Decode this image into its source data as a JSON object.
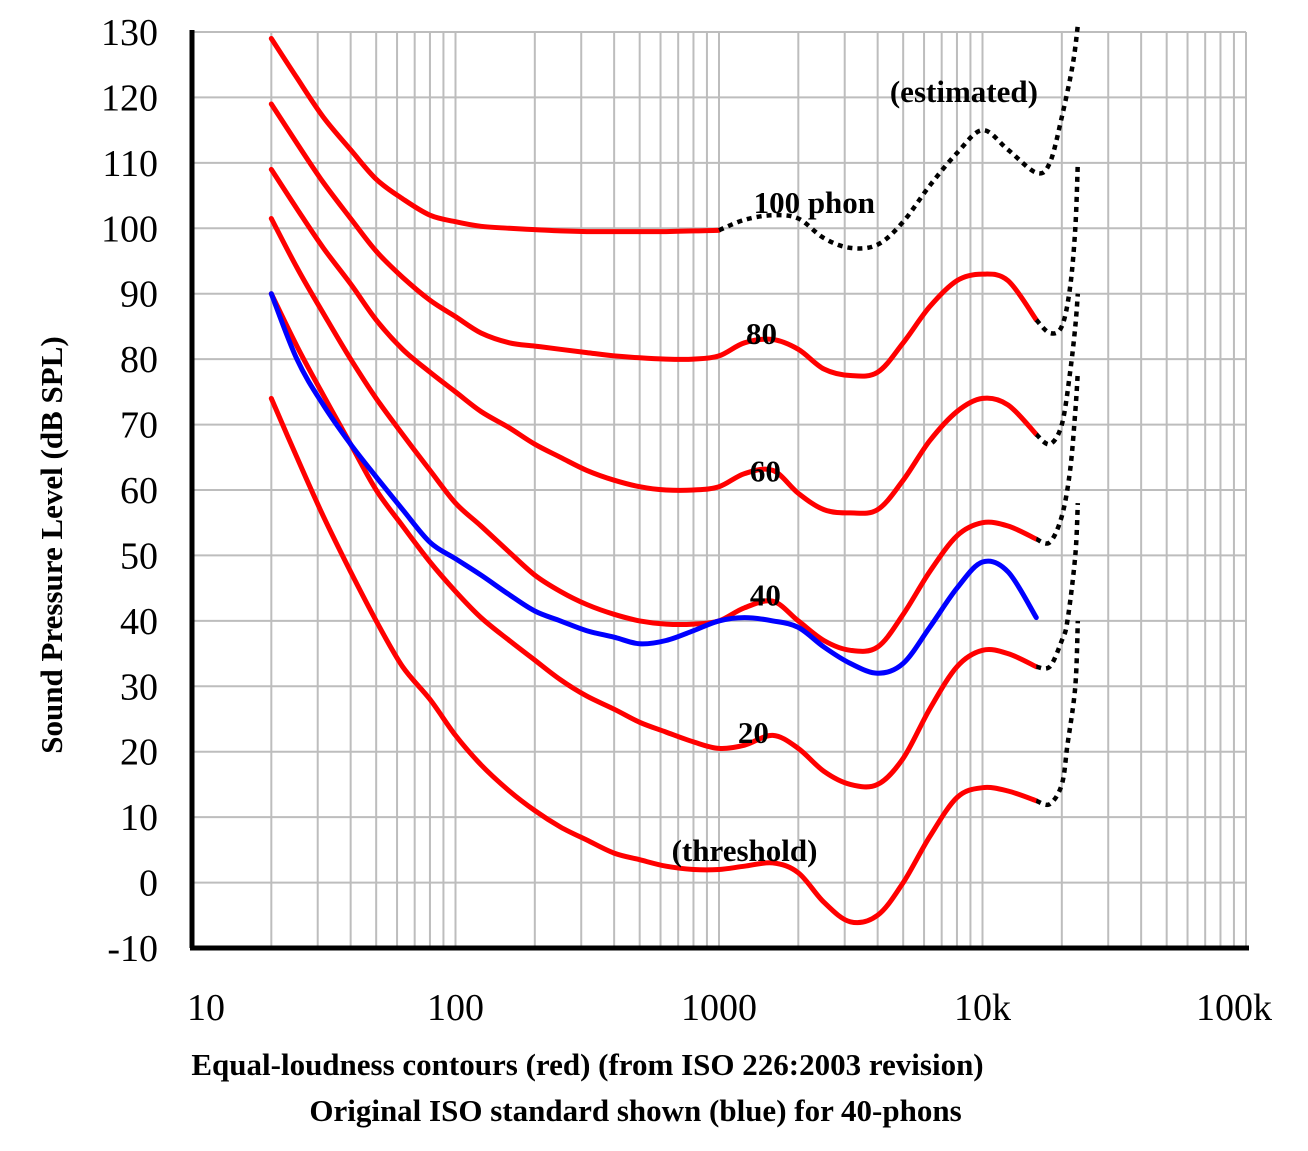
{
  "chart_data": {
    "type": "line",
    "xscale": "log",
    "xlim": [
      10,
      100000
    ],
    "ylim": [
      -10,
      130
    ],
    "grid": true,
    "ylabel": "Sound Pressure Level (dB SPL)",
    "xlabel_lines": [
      "Equal-loudness contours (red) (from ISO 226:2003 revision)",
      "Original ISO standard shown (blue) for 40-phons"
    ],
    "y_ticks": [
      {
        "value": 130,
        "label": "130"
      },
      {
        "value": 120,
        "label": "120"
      },
      {
        "value": 110,
        "label": "110"
      },
      {
        "value": 100,
        "label": "100"
      },
      {
        "value": 90,
        "label": "90"
      },
      {
        "value": 80,
        "label": "80"
      },
      {
        "value": 70,
        "label": "70"
      },
      {
        "value": 60,
        "label": "60"
      },
      {
        "value": 50,
        "label": "50"
      },
      {
        "value": 40,
        "label": "40"
      },
      {
        "value": 30,
        "label": "30"
      },
      {
        "value": 20,
        "label": "20"
      },
      {
        "value": 10,
        "label": "10"
      },
      {
        "value": 0,
        "label": "0"
      },
      {
        "value": -10,
        "label": "-10"
      }
    ],
    "x_ticks": [
      {
        "value": 10,
        "label": "10"
      },
      {
        "value": 100,
        "label": "100"
      },
      {
        "value": 1000,
        "label": "1000"
      },
      {
        "value": 10000,
        "label": "10k"
      },
      {
        "value": 100000,
        "label": "100k"
      }
    ],
    "annotations": [
      {
        "text": "(estimated)",
        "x": 8500,
        "y": 121
      },
      {
        "text": "100 phon",
        "x": 2300,
        "y": 104
      },
      {
        "text": "80",
        "x": 1450,
        "y": 84
      },
      {
        "text": "60",
        "x": 1500,
        "y": 63
      },
      {
        "text": "40",
        "x": 1500,
        "y": 44
      },
      {
        "text": "20",
        "x": 1350,
        "y": 23
      },
      {
        "text": "(threshold)",
        "x": 1250,
        "y": 5
      }
    ],
    "series": [
      {
        "color": "#ff0000",
        "style": "solid",
        "points": [
          [
            20,
            129
          ],
          [
            25,
            123
          ],
          [
            31.5,
            117
          ],
          [
            40,
            112
          ],
          [
            50,
            107.5
          ],
          [
            63,
            104.5
          ],
          [
            80,
            102
          ],
          [
            100,
            101
          ],
          [
            125,
            100.3
          ],
          [
            160,
            100
          ],
          [
            200,
            99.8
          ],
          [
            250,
            99.6
          ],
          [
            315,
            99.5
          ],
          [
            400,
            99.5
          ],
          [
            500,
            99.5
          ],
          [
            630,
            99.5
          ],
          [
            800,
            99.6
          ],
          [
            1000,
            99.7
          ]
        ]
      },
      {
        "color": "#000000",
        "style": "dotted",
        "points": [
          [
            1000,
            99.7
          ],
          [
            1250,
            101.3
          ],
          [
            1600,
            102
          ],
          [
            2000,
            101.5
          ],
          [
            2500,
            98.5
          ],
          [
            3150,
            97
          ],
          [
            4000,
            97.5
          ],
          [
            5000,
            101
          ],
          [
            6300,
            106.5
          ],
          [
            8000,
            111.5
          ],
          [
            10000,
            115
          ],
          [
            12500,
            112
          ],
          [
            16000,
            108.5
          ],
          [
            18000,
            110
          ],
          [
            20000,
            117
          ],
          [
            22000,
            125
          ],
          [
            23000,
            131
          ]
        ]
      },
      {
        "color": "#ff0000",
        "style": "solid",
        "points": [
          [
            20,
            119
          ],
          [
            25,
            113
          ],
          [
            31.5,
            107
          ],
          [
            40,
            101.5
          ],
          [
            50,
            96.5
          ],
          [
            63,
            92.5
          ],
          [
            80,
            89
          ],
          [
            100,
            86.5
          ],
          [
            125,
            84
          ],
          [
            160,
            82.5
          ],
          [
            200,
            82
          ],
          [
            250,
            81.5
          ],
          [
            315,
            81
          ],
          [
            400,
            80.5
          ],
          [
            500,
            80.2
          ],
          [
            630,
            80
          ],
          [
            800,
            80
          ],
          [
            1000,
            80.5
          ],
          [
            1250,
            82.5
          ],
          [
            1600,
            83
          ],
          [
            2000,
            81.5
          ],
          [
            2500,
            78.5
          ],
          [
            3150,
            77.5
          ],
          [
            4000,
            78
          ],
          [
            5000,
            82.5
          ],
          [
            6300,
            88
          ],
          [
            8000,
            92
          ],
          [
            10000,
            93
          ],
          [
            12500,
            92
          ],
          [
            16000,
            86
          ]
        ]
      },
      {
        "color": "#000000",
        "style": "dotted",
        "points": [
          [
            16000,
            86
          ],
          [
            18000,
            84
          ],
          [
            20000,
            85
          ],
          [
            21500,
            91
          ],
          [
            22500,
            100
          ],
          [
            23000,
            110
          ]
        ]
      },
      {
        "color": "#ff0000",
        "style": "solid",
        "points": [
          [
            20,
            109
          ],
          [
            25,
            103
          ],
          [
            31.5,
            97
          ],
          [
            40,
            91.5
          ],
          [
            50,
            86
          ],
          [
            63,
            81.5
          ],
          [
            80,
            78
          ],
          [
            100,
            75
          ],
          [
            125,
            72
          ],
          [
            160,
            69.5
          ],
          [
            200,
            67
          ],
          [
            250,
            65
          ],
          [
            315,
            63
          ],
          [
            400,
            61.5
          ],
          [
            500,
            60.5
          ],
          [
            630,
            60
          ],
          [
            800,
            60
          ],
          [
            1000,
            60.5
          ],
          [
            1250,
            62.5
          ],
          [
            1600,
            63
          ],
          [
            2000,
            59.5
          ],
          [
            2500,
            57
          ],
          [
            3150,
            56.5
          ],
          [
            4000,
            57
          ],
          [
            5000,
            61.5
          ],
          [
            6300,
            67.5
          ],
          [
            8000,
            72
          ],
          [
            10000,
            74
          ],
          [
            12500,
            73
          ],
          [
            16000,
            68.5
          ]
        ]
      },
      {
        "color": "#000000",
        "style": "dotted",
        "points": [
          [
            16000,
            68.5
          ],
          [
            18000,
            67
          ],
          [
            20000,
            70
          ],
          [
            21500,
            78
          ],
          [
            22500,
            85
          ],
          [
            23000,
            90
          ]
        ]
      },
      {
        "color": "#ff0000",
        "style": "solid",
        "points": [
          [
            20,
            101.5
          ],
          [
            25,
            94
          ],
          [
            31.5,
            87
          ],
          [
            40,
            80
          ],
          [
            50,
            74
          ],
          [
            63,
            68.5
          ],
          [
            80,
            63
          ],
          [
            100,
            58
          ],
          [
            125,
            54.5
          ],
          [
            160,
            50.5
          ],
          [
            200,
            47
          ],
          [
            250,
            44.5
          ],
          [
            315,
            42.5
          ],
          [
            400,
            41
          ],
          [
            500,
            40
          ],
          [
            630,
            39.5
          ],
          [
            800,
            39.5
          ],
          [
            1000,
            40
          ],
          [
            1250,
            42
          ],
          [
            1600,
            43
          ],
          [
            2000,
            40
          ],
          [
            2500,
            37
          ],
          [
            3150,
            35.5
          ],
          [
            4000,
            36
          ],
          [
            5000,
            41
          ],
          [
            6300,
            47.5
          ],
          [
            8000,
            53
          ],
          [
            10000,
            55
          ],
          [
            12500,
            54.5
          ],
          [
            16000,
            52.5
          ]
        ]
      },
      {
        "color": "#000000",
        "style": "dotted",
        "points": [
          [
            16000,
            52.5
          ],
          [
            18000,
            52
          ],
          [
            20000,
            56
          ],
          [
            21500,
            63
          ],
          [
            22500,
            72
          ],
          [
            23000,
            78
          ]
        ]
      },
      {
        "color": "#ff0000",
        "style": "solid",
        "points": [
          [
            20,
            90
          ],
          [
            25,
            82
          ],
          [
            31.5,
            74.5
          ],
          [
            40,
            67
          ],
          [
            50,
            60
          ],
          [
            63,
            54.5
          ],
          [
            80,
            49
          ],
          [
            100,
            44.5
          ],
          [
            125,
            40.5
          ],
          [
            160,
            37
          ],
          [
            200,
            34
          ],
          [
            250,
            31
          ],
          [
            315,
            28.5
          ],
          [
            400,
            26.5
          ],
          [
            500,
            24.5
          ],
          [
            630,
            23
          ],
          [
            800,
            21.5
          ],
          [
            1000,
            20.5
          ],
          [
            1250,
            21
          ],
          [
            1600,
            22.5
          ],
          [
            2000,
            20.5
          ],
          [
            2500,
            17
          ],
          [
            3150,
            15
          ],
          [
            4000,
            15
          ],
          [
            5000,
            19
          ],
          [
            6300,
            26.5
          ],
          [
            8000,
            33
          ],
          [
            10000,
            35.5
          ],
          [
            12500,
            35
          ],
          [
            16000,
            33
          ]
        ]
      },
      {
        "color": "#000000",
        "style": "dotted",
        "points": [
          [
            16000,
            33
          ],
          [
            18000,
            33
          ],
          [
            20000,
            37
          ],
          [
            21000,
            40
          ],
          [
            22500,
            50
          ],
          [
            23000,
            58
          ]
        ]
      },
      {
        "color": "#ff0000",
        "style": "solid",
        "points": [
          [
            20,
            74
          ],
          [
            25,
            65
          ],
          [
            31.5,
            56
          ],
          [
            40,
            47.5
          ],
          [
            50,
            40
          ],
          [
            63,
            33
          ],
          [
            80,
            28
          ],
          [
            100,
            22.5
          ],
          [
            125,
            18
          ],
          [
            160,
            14
          ],
          [
            200,
            11
          ],
          [
            250,
            8.5
          ],
          [
            315,
            6.5
          ],
          [
            400,
            4.5
          ],
          [
            500,
            3.5
          ],
          [
            630,
            2.5
          ],
          [
            800,
            2
          ],
          [
            1000,
            2
          ],
          [
            1250,
            2.5
          ],
          [
            1600,
            3
          ],
          [
            2000,
            1.5
          ],
          [
            2500,
            -3
          ],
          [
            3150,
            -6
          ],
          [
            4000,
            -5
          ],
          [
            5000,
            0
          ],
          [
            6300,
            7
          ],
          [
            8000,
            13
          ],
          [
            10000,
            14.5
          ],
          [
            12500,
            14
          ],
          [
            16000,
            12.5
          ]
        ]
      },
      {
        "color": "#000000",
        "style": "dotted",
        "points": [
          [
            16000,
            12.5
          ],
          [
            18000,
            12
          ],
          [
            20000,
            15
          ],
          [
            21000,
            21
          ],
          [
            22500,
            30
          ],
          [
            23000,
            40
          ]
        ]
      },
      {
        "color": "#0000ff",
        "style": "solid",
        "points": [
          [
            20,
            90
          ],
          [
            25,
            80
          ],
          [
            31.5,
            73
          ],
          [
            40,
            67
          ],
          [
            50,
            62
          ],
          [
            63,
            57
          ],
          [
            80,
            52
          ],
          [
            100,
            49.5
          ],
          [
            125,
            47
          ],
          [
            160,
            44
          ],
          [
            200,
            41.5
          ],
          [
            250,
            40
          ],
          [
            315,
            38.5
          ],
          [
            400,
            37.5
          ],
          [
            500,
            36.5
          ],
          [
            630,
            37
          ],
          [
            800,
            38.5
          ],
          [
            1000,
            40
          ],
          [
            1250,
            40.5
          ],
          [
            1600,
            40
          ],
          [
            2000,
            39
          ],
          [
            2500,
            36
          ],
          [
            3150,
            33.5
          ],
          [
            4000,
            32
          ],
          [
            5000,
            33.5
          ],
          [
            6300,
            39
          ],
          [
            8000,
            45
          ],
          [
            10000,
            49
          ],
          [
            12500,
            47.5
          ],
          [
            16000,
            40.5
          ]
        ]
      }
    ]
  }
}
